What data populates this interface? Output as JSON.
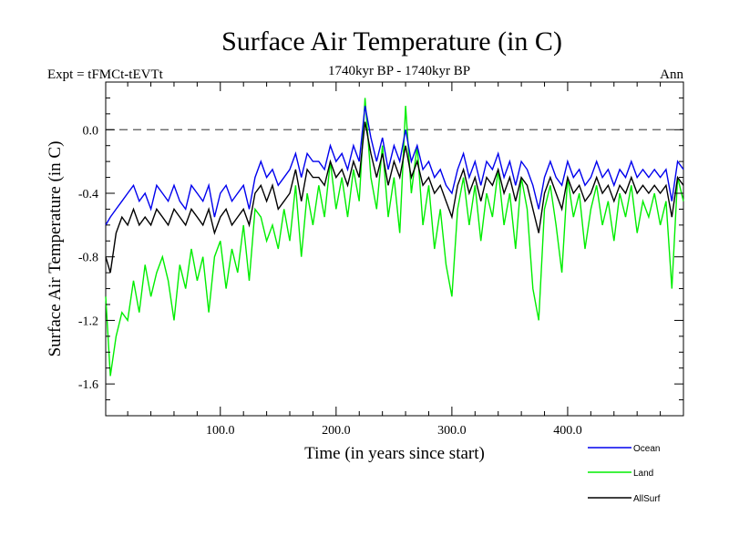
{
  "chart_data": {
    "type": "line",
    "title": "Surface Air Temperature (in C)",
    "subtitle_left": "Expt = tFMCt-tEVTt",
    "subtitle_center": "1740kyr BP - 1740kyr BP",
    "subtitle_right": "Ann",
    "xlabel": "Time (in years since start)",
    "ylabel": "Surface Air Temperature (in C)",
    "xlim": [
      1,
      500
    ],
    "ylim": [
      -1.8,
      0.3
    ],
    "xticks": [
      100,
      200,
      300,
      400
    ],
    "xtick_labels": [
      "100.0",
      "200.0",
      "300.0",
      "400.0"
    ],
    "yticks": [
      0.0,
      -0.4,
      -0.8,
      -1.2,
      -1.6
    ],
    "ytick_labels": [
      "0.0",
      "-0.4",
      "-0.8",
      "-1.2",
      "-1.6"
    ],
    "reference_line": {
      "y": 0.0,
      "style": "dashed"
    },
    "legend_placement": "bottom-right",
    "series": [
      {
        "name": "Land",
        "color": "#00ee00",
        "x": [
          1,
          5,
          10,
          15,
          20,
          25,
          30,
          35,
          40,
          45,
          50,
          55,
          60,
          65,
          70,
          75,
          80,
          85,
          90,
          95,
          100,
          105,
          110,
          115,
          120,
          125,
          130,
          135,
          140,
          145,
          150,
          155,
          160,
          165,
          170,
          175,
          180,
          185,
          190,
          195,
          200,
          205,
          210,
          215,
          220,
          225,
          230,
          235,
          240,
          245,
          250,
          255,
          260,
          265,
          270,
          275,
          280,
          285,
          290,
          295,
          300,
          305,
          310,
          315,
          320,
          325,
          330,
          335,
          340,
          345,
          350,
          355,
          360,
          365,
          370,
          375,
          380,
          385,
          390,
          395,
          400,
          405,
          410,
          415,
          420,
          425,
          430,
          435,
          440,
          445,
          450,
          455,
          460,
          465,
          470,
          475,
          480,
          485,
          490,
          495,
          500
        ],
        "values": [
          -1.05,
          -1.55,
          -1.3,
          -1.15,
          -1.2,
          -0.95,
          -1.15,
          -0.85,
          -1.05,
          -0.9,
          -0.8,
          -0.95,
          -1.2,
          -0.85,
          -1.0,
          -0.75,
          -0.95,
          -0.8,
          -1.15,
          -0.8,
          -0.7,
          -1.0,
          -0.75,
          -0.9,
          -0.6,
          -0.95,
          -0.5,
          -0.55,
          -0.7,
          -0.6,
          -0.75,
          -0.5,
          -0.7,
          -0.35,
          -0.8,
          -0.4,
          -0.6,
          -0.35,
          -0.55,
          -0.2,
          -0.5,
          -0.3,
          -0.55,
          -0.25,
          -0.45,
          0.2,
          -0.3,
          -0.5,
          -0.1,
          -0.55,
          -0.3,
          -0.65,
          0.15,
          -0.4,
          -0.1,
          -0.6,
          -0.35,
          -0.75,
          -0.5,
          -0.85,
          -1.05,
          -0.5,
          -0.3,
          -0.6,
          -0.35,
          -0.7,
          -0.4,
          -0.55,
          -0.25,
          -0.6,
          -0.4,
          -0.75,
          -0.3,
          -0.5,
          -1.0,
          -1.2,
          -0.5,
          -0.35,
          -0.6,
          -0.9,
          -0.3,
          -0.55,
          -0.4,
          -0.75,
          -0.5,
          -0.35,
          -0.6,
          -0.45,
          -0.7,
          -0.4,
          -0.55,
          -0.35,
          -0.65,
          -0.45,
          -0.55,
          -0.4,
          -0.6,
          -0.45,
          -1.0,
          -0.3,
          -0.45
        ]
      },
      {
        "name": "AllSurf",
        "color": "#000000",
        "x": [
          1,
          5,
          10,
          15,
          20,
          25,
          30,
          35,
          40,
          45,
          50,
          55,
          60,
          65,
          70,
          75,
          80,
          85,
          90,
          95,
          100,
          105,
          110,
          115,
          120,
          125,
          130,
          135,
          140,
          145,
          150,
          155,
          160,
          165,
          170,
          175,
          180,
          185,
          190,
          195,
          200,
          205,
          210,
          215,
          220,
          225,
          230,
          235,
          240,
          245,
          250,
          255,
          260,
          265,
          270,
          275,
          280,
          285,
          290,
          295,
          300,
          305,
          310,
          315,
          320,
          325,
          330,
          335,
          340,
          345,
          350,
          355,
          360,
          365,
          370,
          375,
          380,
          385,
          390,
          395,
          400,
          405,
          410,
          415,
          420,
          425,
          430,
          435,
          440,
          445,
          450,
          455,
          460,
          465,
          470,
          475,
          480,
          485,
          490,
          495,
          500
        ],
        "values": [
          -0.8,
          -0.9,
          -0.65,
          -0.55,
          -0.6,
          -0.5,
          -0.6,
          -0.55,
          -0.6,
          -0.5,
          -0.55,
          -0.6,
          -0.5,
          -0.55,
          -0.6,
          -0.5,
          -0.55,
          -0.6,
          -0.5,
          -0.65,
          -0.55,
          -0.5,
          -0.6,
          -0.55,
          -0.5,
          -0.6,
          -0.4,
          -0.35,
          -0.45,
          -0.35,
          -0.5,
          -0.45,
          -0.4,
          -0.25,
          -0.45,
          -0.25,
          -0.3,
          -0.3,
          -0.35,
          -0.2,
          -0.3,
          -0.25,
          -0.35,
          -0.2,
          -0.3,
          0.05,
          -0.15,
          -0.3,
          -0.15,
          -0.35,
          -0.2,
          -0.3,
          -0.1,
          -0.3,
          -0.2,
          -0.35,
          -0.3,
          -0.4,
          -0.35,
          -0.45,
          -0.55,
          -0.35,
          -0.25,
          -0.4,
          -0.3,
          -0.45,
          -0.3,
          -0.35,
          -0.25,
          -0.4,
          -0.3,
          -0.45,
          -0.3,
          -0.35,
          -0.5,
          -0.65,
          -0.4,
          -0.3,
          -0.4,
          -0.5,
          -0.3,
          -0.4,
          -0.35,
          -0.45,
          -0.4,
          -0.3,
          -0.4,
          -0.35,
          -0.45,
          -0.35,
          -0.4,
          -0.3,
          -0.4,
          -0.35,
          -0.4,
          -0.35,
          -0.4,
          -0.35,
          -0.55,
          -0.3,
          -0.35
        ]
      },
      {
        "name": "Ocean",
        "color": "#0000ee",
        "x": [
          1,
          5,
          10,
          15,
          20,
          25,
          30,
          35,
          40,
          45,
          50,
          55,
          60,
          65,
          70,
          75,
          80,
          85,
          90,
          95,
          100,
          105,
          110,
          115,
          120,
          125,
          130,
          135,
          140,
          145,
          150,
          155,
          160,
          165,
          170,
          175,
          180,
          185,
          190,
          195,
          200,
          205,
          210,
          215,
          220,
          225,
          230,
          235,
          240,
          245,
          250,
          255,
          260,
          265,
          270,
          275,
          280,
          285,
          290,
          295,
          300,
          305,
          310,
          315,
          320,
          325,
          330,
          335,
          340,
          345,
          350,
          355,
          360,
          365,
          370,
          375,
          380,
          385,
          390,
          395,
          400,
          405,
          410,
          415,
          420,
          425,
          430,
          435,
          440,
          445,
          450,
          455,
          460,
          465,
          470,
          475,
          480,
          485,
          490,
          495,
          500
        ],
        "values": [
          -0.6,
          -0.55,
          -0.5,
          -0.45,
          -0.4,
          -0.35,
          -0.45,
          -0.4,
          -0.5,
          -0.35,
          -0.4,
          -0.45,
          -0.35,
          -0.45,
          -0.5,
          -0.35,
          -0.4,
          -0.45,
          -0.35,
          -0.55,
          -0.4,
          -0.35,
          -0.45,
          -0.4,
          -0.35,
          -0.5,
          -0.3,
          -0.2,
          -0.3,
          -0.25,
          -0.35,
          -0.3,
          -0.25,
          -0.15,
          -0.3,
          -0.15,
          -0.2,
          -0.2,
          -0.25,
          -0.1,
          -0.2,
          -0.15,
          -0.25,
          -0.1,
          -0.2,
          0.15,
          -0.05,
          -0.2,
          -0.05,
          -0.25,
          -0.1,
          -0.2,
          -0.0,
          -0.2,
          -0.1,
          -0.25,
          -0.2,
          -0.3,
          -0.25,
          -0.35,
          -0.4,
          -0.25,
          -0.15,
          -0.3,
          -0.2,
          -0.35,
          -0.2,
          -0.25,
          -0.15,
          -0.3,
          -0.2,
          -0.35,
          -0.2,
          -0.25,
          -0.35,
          -0.5,
          -0.3,
          -0.2,
          -0.3,
          -0.35,
          -0.2,
          -0.3,
          -0.25,
          -0.35,
          -0.3,
          -0.2,
          -0.3,
          -0.25,
          -0.35,
          -0.25,
          -0.3,
          -0.2,
          -0.3,
          -0.25,
          -0.3,
          -0.25,
          -0.3,
          -0.25,
          -0.45,
          -0.2,
          -0.25
        ]
      }
    ]
  },
  "legend": {
    "ocean": "Ocean",
    "land": "Land",
    "allsurf": "AllSurf"
  }
}
